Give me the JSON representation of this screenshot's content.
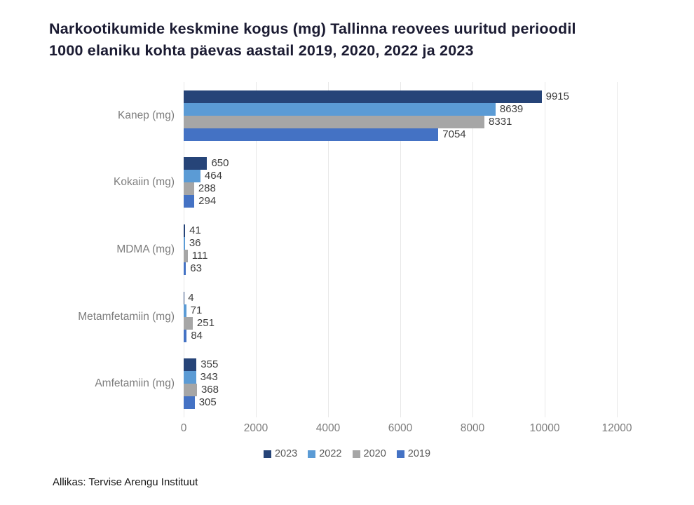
{
  "header": {
    "title_lines": [
      "Narkootikumide keskmine kogus (mg) Tallinna reovees uuritud perioodil",
      "1000 elaniku kohta päevas aastail 2019, 2020, 2022 ja 2023"
    ]
  },
  "footer": {
    "source": "Allikas: Tervise Arengu Instituut"
  },
  "chart_data": {
    "type": "bar",
    "orientation": "horizontal",
    "title": "Narkootikumide keskmine kogus (mg) Tallinna reovees uuritud perioodil 1000 elaniku kohta päevas aastail 2019, 2020, 2022 ja 2023",
    "categories": [
      "Kanep (mg)",
      "Kokaiin (mg)",
      "MDMA (mg)",
      "Metamfetamiin (mg)",
      "Amfetamiin (mg)"
    ],
    "series": [
      {
        "name": "2023",
        "color": "#264478",
        "values": [
          9915,
          650,
          41,
          4,
          355
        ]
      },
      {
        "name": "2022",
        "color": "#5b9bd5",
        "values": [
          8639,
          464,
          36,
          71,
          343
        ]
      },
      {
        "name": "2020",
        "color": "#a6a6a6",
        "values": [
          8331,
          288,
          111,
          251,
          368
        ]
      },
      {
        "name": "2019",
        "color": "#4472c4",
        "values": [
          7054,
          294,
          63,
          84,
          305
        ]
      }
    ],
    "x_ticks": [
      0,
      2000,
      4000,
      6000,
      8000,
      10000,
      12000
    ],
    "xlim": [
      0,
      12000
    ],
    "xlabel": "",
    "ylabel": "",
    "grid": "vertical",
    "gridline_color": "#e8e8e8",
    "legend_position": "bottom",
    "value_labels": true
  }
}
